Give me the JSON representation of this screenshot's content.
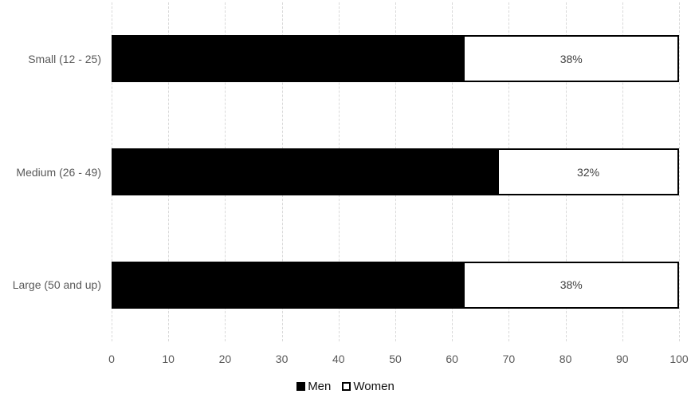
{
  "chart_data": {
    "type": "bar",
    "orientation": "horizontal",
    "stacked": true,
    "title": "",
    "xlabel": "",
    "ylabel": "",
    "categories": [
      "Small (12 - 25)",
      "Medium (26 - 49)",
      "Large (50 and up)"
    ],
    "series": [
      {
        "name": "Men",
        "values": [
          62,
          68,
          62
        ],
        "color": "#000000"
      },
      {
        "name": "Women",
        "values": [
          38,
          32,
          38
        ],
        "color": "#ffffff"
      }
    ],
    "data_labels": [
      "38%",
      "32%",
      "38%"
    ],
    "x_ticks": [
      0,
      10,
      20,
      30,
      40,
      50,
      60,
      70,
      80,
      90,
      100
    ],
    "xlim": [
      0,
      100
    ],
    "grid": true,
    "legend_position": "bottom"
  },
  "colors": {
    "men_fill": "#000000",
    "women_fill": "#ffffff",
    "segment_border": "#000000",
    "gridline": "#d9d9d9",
    "axis_text": "#595959",
    "data_label_text": "#404040",
    "legend_text": "#111111",
    "background": "#ffffff"
  },
  "legend": {
    "items": [
      {
        "label": "Men",
        "swatch": "filled-black-square"
      },
      {
        "label": "Women",
        "swatch": "outlined-white-square"
      }
    ]
  }
}
